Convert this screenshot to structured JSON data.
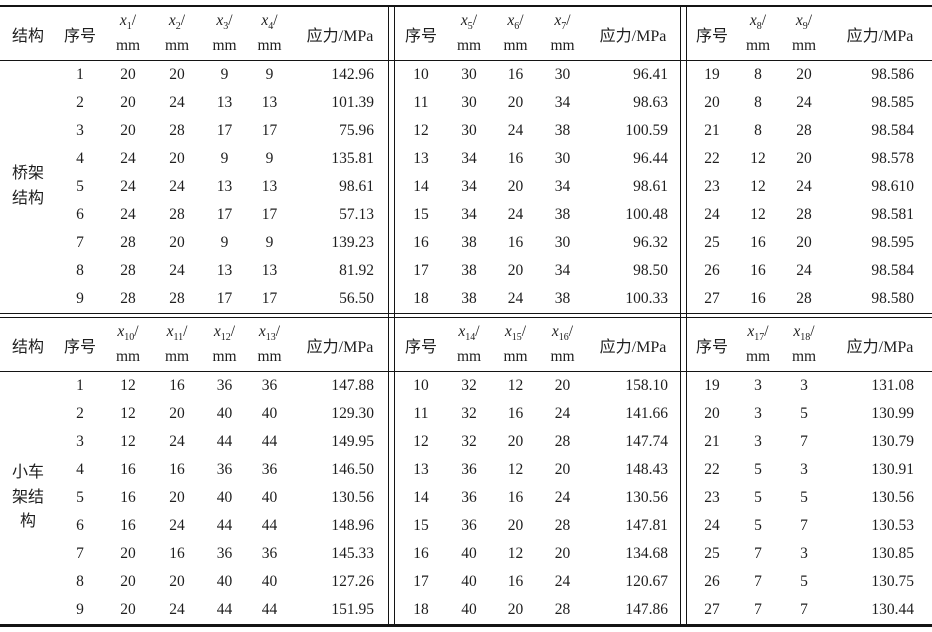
{
  "page": {
    "background": "#ffffff",
    "rule_color": "#141414",
    "text_color": "#1e1e1e"
  },
  "tables": [
    {
      "structure_header": "结构",
      "structure_label_lines": [
        "桥架",
        "结构"
      ],
      "groups": [
        {
          "index_header": "序号",
          "stress_header": "应力/MPa",
          "x_cols": [
            {
              "letter": "x",
              "sub": "1",
              "slash": "/",
              "unit": "mm"
            },
            {
              "letter": "x",
              "sub": "2",
              "slash": "/",
              "unit": "mm"
            },
            {
              "letter": "x",
              "sub": "3",
              "slash": "/",
              "unit": "mm"
            },
            {
              "letter": "x",
              "sub": "4",
              "slash": "/",
              "unit": "mm"
            }
          ],
          "rows": [
            [
              "1",
              "20",
              "20",
              "9",
              "9",
              "142.96"
            ],
            [
              "2",
              "20",
              "24",
              "13",
              "13",
              "101.39"
            ],
            [
              "3",
              "20",
              "28",
              "17",
              "17",
              "75.96"
            ],
            [
              "4",
              "24",
              "20",
              "9",
              "9",
              "135.81"
            ],
            [
              "5",
              "24",
              "24",
              "13",
              "13",
              "98.61"
            ],
            [
              "6",
              "24",
              "28",
              "17",
              "17",
              "57.13"
            ],
            [
              "7",
              "28",
              "20",
              "9",
              "9",
              "139.23"
            ],
            [
              "8",
              "28",
              "24",
              "13",
              "13",
              "81.92"
            ],
            [
              "9",
              "28",
              "28",
              "17",
              "17",
              "56.50"
            ]
          ]
        },
        {
          "index_header": "序号",
          "stress_header": "应力/MPa",
          "x_cols": [
            {
              "letter": "x",
              "sub": "5",
              "slash": "/",
              "unit": "mm"
            },
            {
              "letter": "x",
              "sub": "6",
              "slash": "/",
              "unit": "mm"
            },
            {
              "letter": "x",
              "sub": "7",
              "slash": "/",
              "unit": "mm"
            }
          ],
          "rows": [
            [
              "10",
              "30",
              "16",
              "30",
              "96.41"
            ],
            [
              "11",
              "30",
              "20",
              "34",
              "98.63"
            ],
            [
              "12",
              "30",
              "24",
              "38",
              "100.59"
            ],
            [
              "13",
              "34",
              "16",
              "30",
              "96.44"
            ],
            [
              "14",
              "34",
              "20",
              "34",
              "98.61"
            ],
            [
              "15",
              "34",
              "24",
              "38",
              "100.48"
            ],
            [
              "16",
              "38",
              "16",
              "30",
              "96.32"
            ],
            [
              "17",
              "38",
              "20",
              "34",
              "98.50"
            ],
            [
              "18",
              "38",
              "24",
              "38",
              "100.33"
            ]
          ]
        },
        {
          "index_header": "序号",
          "stress_header": "应力/MPa",
          "x_cols": [
            {
              "letter": "x",
              "sub": "8",
              "slash": "/",
              "unit": "mm"
            },
            {
              "letter": "x",
              "sub": "9",
              "slash": "/",
              "unit": "mm"
            }
          ],
          "rows": [
            [
              "19",
              "8",
              "20",
              "98.586"
            ],
            [
              "20",
              "8",
              "24",
              "98.585"
            ],
            [
              "21",
              "8",
              "28",
              "98.584"
            ],
            [
              "22",
              "12",
              "20",
              "98.578"
            ],
            [
              "23",
              "12",
              "24",
              "98.610"
            ],
            [
              "24",
              "12",
              "28",
              "98.581"
            ],
            [
              "25",
              "16",
              "20",
              "98.595"
            ],
            [
              "26",
              "16",
              "24",
              "98.584"
            ],
            [
              "27",
              "16",
              "28",
              "98.580"
            ]
          ]
        }
      ]
    },
    {
      "structure_header": "结构",
      "structure_label_lines": [
        "小车",
        "架结",
        "构"
      ],
      "groups": [
        {
          "index_header": "序号",
          "stress_header": "应力/MPa",
          "x_cols": [
            {
              "letter": "x",
              "sub": "10",
              "slash": "/",
              "unit": "mm"
            },
            {
              "letter": "x",
              "sub": "11",
              "slash": "/",
              "unit": "mm"
            },
            {
              "letter": "x",
              "sub": "12",
              "slash": "/",
              "unit": "mm"
            },
            {
              "letter": "x",
              "sub": "13",
              "slash": "/",
              "unit": "mm"
            }
          ],
          "rows": [
            [
              "1",
              "12",
              "16",
              "36",
              "36",
              "147.88"
            ],
            [
              "2",
              "12",
              "20",
              "40",
              "40",
              "129.30"
            ],
            [
              "3",
              "12",
              "24",
              "44",
              "44",
              "149.95"
            ],
            [
              "4",
              "16",
              "16",
              "36",
              "36",
              "146.50"
            ],
            [
              "5",
              "16",
              "20",
              "40",
              "40",
              "130.56"
            ],
            [
              "6",
              "16",
              "24",
              "44",
              "44",
              "148.96"
            ],
            [
              "7",
              "20",
              "16",
              "36",
              "36",
              "145.33"
            ],
            [
              "8",
              "20",
              "20",
              "40",
              "40",
              "127.26"
            ],
            [
              "9",
              "20",
              "24",
              "44",
              "44",
              "151.95"
            ]
          ]
        },
        {
          "index_header": "序号",
          "stress_header": "应力/MPa",
          "x_cols": [
            {
              "letter": "x",
              "sub": "14",
              "slash": "/",
              "unit": "mm"
            },
            {
              "letter": "x",
              "sub": "15",
              "slash": "/",
              "unit": "mm"
            },
            {
              "letter": "x",
              "sub": "16",
              "slash": "/",
              "unit": "mm"
            }
          ],
          "rows": [
            [
              "10",
              "32",
              "12",
              "20",
              "158.10"
            ],
            [
              "11",
              "32",
              "16",
              "24",
              "141.66"
            ],
            [
              "12",
              "32",
              "20",
              "28",
              "147.74"
            ],
            [
              "13",
              "36",
              "12",
              "20",
              "148.43"
            ],
            [
              "14",
              "36",
              "16",
              "24",
              "130.56"
            ],
            [
              "15",
              "36",
              "20",
              "28",
              "147.81"
            ],
            [
              "16",
              "40",
              "12",
              "20",
              "134.68"
            ],
            [
              "17",
              "40",
              "16",
              "24",
              "120.67"
            ],
            [
              "18",
              "40",
              "20",
              "28",
              "147.86"
            ]
          ]
        },
        {
          "index_header": "序号",
          "stress_header": "应力/MPa",
          "x_cols": [
            {
              "letter": "x",
              "sub": "17",
              "slash": "/",
              "unit": "mm"
            },
            {
              "letter": "x",
              "sub": "18",
              "slash": "/",
              "unit": "mm"
            }
          ],
          "rows": [
            [
              "19",
              "3",
              "3",
              "131.08"
            ],
            [
              "20",
              "3",
              "5",
              "130.99"
            ],
            [
              "21",
              "3",
              "7",
              "130.79"
            ],
            [
              "22",
              "5",
              "3",
              "130.91"
            ],
            [
              "23",
              "5",
              "5",
              "130.56"
            ],
            [
              "24",
              "5",
              "7",
              "130.53"
            ],
            [
              "25",
              "7",
              "3",
              "130.85"
            ],
            [
              "26",
              "7",
              "5",
              "130.75"
            ],
            [
              "27",
              "7",
              "7",
              "130.44"
            ]
          ]
        }
      ]
    }
  ]
}
